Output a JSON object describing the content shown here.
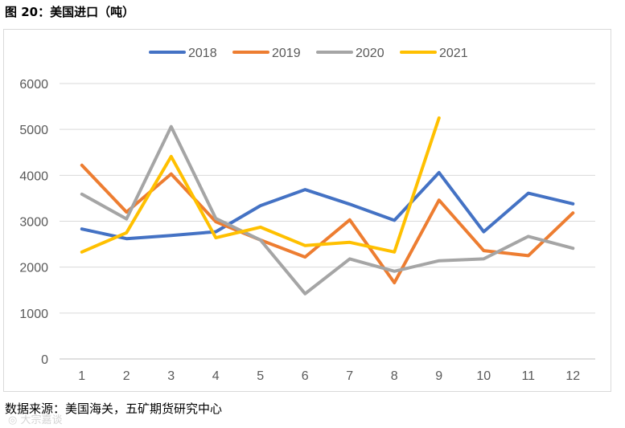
{
  "figure": {
    "title": "图 20：美国进口（吨）",
    "source": "数据来源：美国海关，五矿期货研究中心",
    "watermark": "◎ 大宗嘉谈"
  },
  "chart_data": {
    "type": "line",
    "title": "",
    "xlabel": "",
    "ylabel": "",
    "x": [
      "1",
      "2",
      "3",
      "4",
      "5",
      "6",
      "7",
      "8",
      "9",
      "10",
      "11",
      "12"
    ],
    "ylim": [
      0,
      6000
    ],
    "yticks": [
      0,
      1000,
      2000,
      3000,
      4000,
      5000,
      6000
    ],
    "grid": true,
    "legend_position": "top",
    "series": [
      {
        "name": "2018",
        "color": "#4472c4",
        "values": [
          2830,
          2620,
          2690,
          2770,
          3340,
          3690,
          3370,
          3020,
          4060,
          2770,
          3610,
          3380
        ]
      },
      {
        "name": "2019",
        "color": "#ed7d31",
        "values": [
          4220,
          3200,
          4030,
          2990,
          2590,
          2220,
          3030,
          1660,
          3460,
          2360,
          2250,
          3180
        ]
      },
      {
        "name": "2020",
        "color": "#a5a5a5",
        "values": [
          3590,
          3050,
          5060,
          3060,
          2590,
          1420,
          2180,
          1910,
          2140,
          2180,
          2670,
          2410
        ]
      },
      {
        "name": "2021",
        "color": "#ffc000",
        "values": [
          2330,
          2750,
          4410,
          2640,
          2870,
          2470,
          2540,
          2330,
          5250,
          null,
          null,
          null
        ]
      }
    ]
  }
}
